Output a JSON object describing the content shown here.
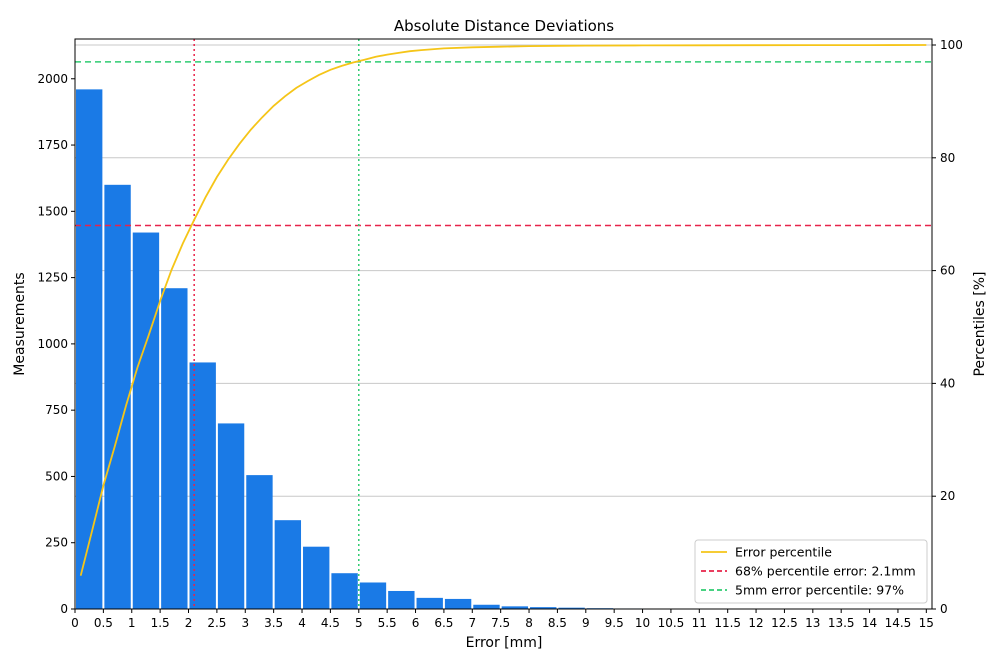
{
  "chart_data": {
    "type": "bar",
    "title": "Absolute Distance Deviations",
    "xlabel": "Error [mm]",
    "ylabel": "Measurements",
    "y2label": "Percentiles [%]",
    "xlim": [
      0,
      15.1
    ],
    "ylim": [
      0,
      2150
    ],
    "y2lim": [
      0,
      100
    ],
    "bin_width": 0.5,
    "x_ticks": [
      "0",
      "0.5",
      "1",
      "1.5",
      "2",
      "2.5",
      "3",
      "3.5",
      "4",
      "4.5",
      "5",
      "5.5",
      "6",
      "6.5",
      "7",
      "7.5",
      "8",
      "8.5",
      "9",
      "9.5",
      "10",
      "10.5",
      "11",
      "11.5",
      "12",
      "12.5",
      "13",
      "13.5",
      "14",
      "14.5",
      "15"
    ],
    "y_ticks": [
      0,
      250,
      500,
      750,
      1000,
      1250,
      1500,
      1750,
      2000
    ],
    "y2_ticks": [
      0,
      20,
      40,
      60,
      80,
      100
    ],
    "grid": "right-axis horizontal",
    "bar_color": "#1a7ae6",
    "bars": {
      "x": [
        0,
        0.5,
        1,
        1.5,
        2,
        2.5,
        3,
        3.5,
        4,
        4.5,
        5,
        5.5,
        6,
        6.5,
        7,
        7.5,
        8,
        8.5,
        9,
        9.5,
        10
      ],
      "values": [
        1960,
        1600,
        1420,
        1210,
        930,
        700,
        505,
        335,
        235,
        135,
        100,
        68,
        42,
        38,
        16,
        10,
        7,
        5,
        3,
        2,
        1
      ]
    },
    "series": [
      {
        "name": "Error percentile",
        "type": "line",
        "axis": "right",
        "color": "#f5c518",
        "x": [
          0.1,
          0.3,
          0.5,
          0.7,
          0.9,
          1.1,
          1.3,
          1.5,
          1.7,
          1.9,
          2.1,
          2.3,
          2.5,
          2.7,
          2.9,
          3.1,
          3.3,
          3.5,
          3.7,
          3.9,
          4.1,
          4.3,
          4.5,
          4.7,
          4.9,
          5.1,
          5.3,
          5.5,
          5.7,
          5.9,
          6.1,
          6.5,
          7.0,
          7.5,
          8.0,
          8.5,
          9.0,
          10.0,
          11.0,
          12.0,
          13.0,
          14.0,
          15.0
        ],
        "y": [
          5.9,
          13.8,
          21.9,
          28.8,
          36.1,
          42.8,
          48.6,
          54.6,
          60.1,
          64.8,
          69.0,
          73.0,
          76.6,
          79.7,
          82.5,
          85.0,
          87.2,
          89.2,
          90.9,
          92.4,
          93.6,
          94.7,
          95.6,
          96.3,
          96.9,
          97.4,
          97.9,
          98.3,
          98.6,
          98.9,
          99.1,
          99.4,
          99.6,
          99.7,
          99.8,
          99.85,
          99.9,
          99.93,
          99.95,
          99.97,
          99.98,
          99.99,
          100
        ]
      },
      {
        "name": "68% percentile error: 2.1mm",
        "type": "hline",
        "axis": "right",
        "value": 68,
        "color": "#e8234a",
        "x_marker": 2.1
      },
      {
        "name": "5mm error percentile: 97%",
        "type": "hline",
        "axis": "right",
        "value": 97,
        "color": "#2ecc71",
        "x_marker": 5
      }
    ],
    "legend": "bottom-right"
  }
}
